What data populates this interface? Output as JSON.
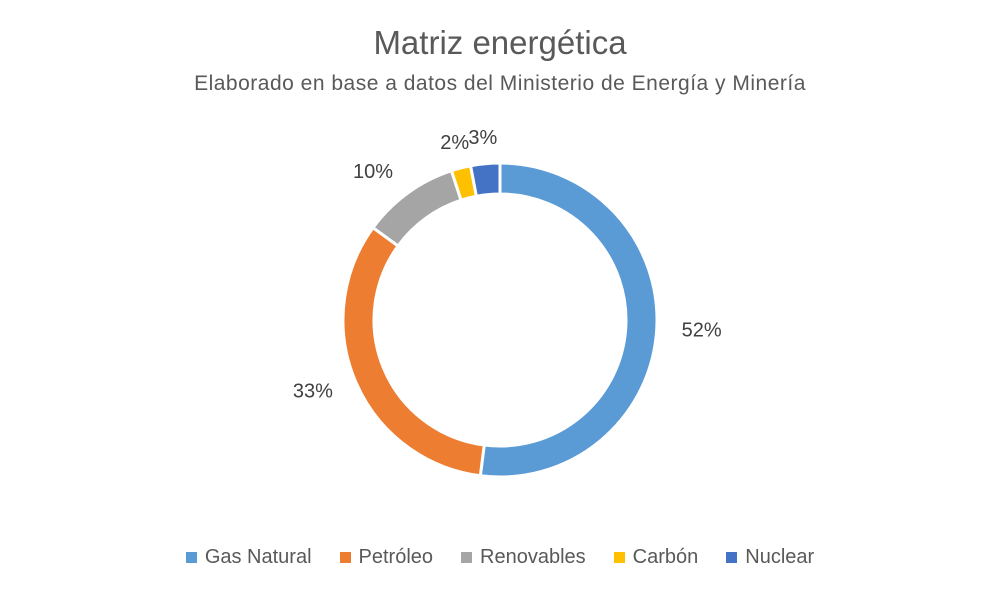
{
  "chart_data": {
    "type": "pie",
    "subtype": "donut",
    "title": "Matriz energética",
    "subtitle": "Elaborado en base a datos del Ministerio de Energía y Minería",
    "categories": [
      "Gas Natural",
      "Petróleo",
      "Renovables",
      "Carbón",
      "Nuclear"
    ],
    "values": [
      52,
      33,
      10,
      2,
      3
    ],
    "labels": [
      "52%",
      "33%",
      "10%",
      "2%",
      "3%"
    ],
    "colors": [
      "#5B9BD5",
      "#ED7D31",
      "#A5A5A5",
      "#FFC000",
      "#4472C4"
    ],
    "legend_position": "bottom"
  }
}
